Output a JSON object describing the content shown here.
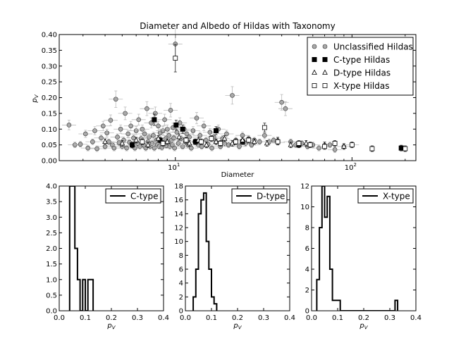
{
  "chart_data": [
    {
      "type": "scatter",
      "title": "Diameter and Albedo of Hildas with Taxonomy",
      "xlabel": "Diameter",
      "ylabel": "p_V",
      "xscale": "log",
      "xlim": [
        2.2,
        230
      ],
      "ylim": [
        0,
        0.4
      ],
      "yticks": [
        "0.00",
        "0.05",
        "0.10",
        "0.15",
        "0.20",
        "0.25",
        "0.30",
        "0.35",
        "0.40"
      ],
      "xticks": [
        {
          "value": 10,
          "base": "10",
          "exp": "1"
        },
        {
          "value": 100,
          "base": "10",
          "exp": "2"
        }
      ],
      "legend_position": "top-right",
      "series": [
        {
          "name": "Unclassified Hildas",
          "marker": "circle",
          "color": "#a9a9a9",
          "points": [
            [
              2.5,
              0.113
            ],
            [
              2.7,
              0.05
            ],
            [
              2.9,
              0.052
            ],
            [
              3.1,
              0.085
            ],
            [
              3.2,
              0.04
            ],
            [
              3.4,
              0.06
            ],
            [
              3.5,
              0.095
            ],
            [
              3.6,
              0.038
            ],
            [
              3.8,
              0.072
            ],
            [
              3.9,
              0.11
            ],
            [
              4.0,
              0.045
            ],
            [
              4.1,
              0.088
            ],
            [
              4.2,
              0.06
            ],
            [
              4.3,
              0.128
            ],
            [
              4.4,
              0.05
            ],
            [
              4.5,
              0.04
            ],
            [
              4.6,
              0.195
            ],
            [
              4.7,
              0.075
            ],
            [
              4.8,
              0.057
            ],
            [
              4.9,
              0.1
            ],
            [
              5.0,
              0.045
            ],
            [
              5.1,
              0.065
            ],
            [
              5.2,
              0.15
            ],
            [
              5.3,
              0.04
            ],
            [
              5.4,
              0.085
            ],
            [
              5.5,
              0.058
            ],
            [
              5.6,
              0.11
            ],
            [
              5.7,
              0.048
            ],
            [
              5.8,
              0.072
            ],
            [
              5.9,
              0.04
            ],
            [
              6.0,
              0.095
            ],
            [
              6.1,
              0.055
            ],
            [
              6.2,
              0.13
            ],
            [
              6.3,
              0.045
            ],
            [
              6.4,
              0.07
            ],
            [
              6.5,
              0.1
            ],
            [
              6.6,
              0.05
            ],
            [
              6.7,
              0.085
            ],
            [
              6.8,
              0.04
            ],
            [
              6.9,
              0.165
            ],
            [
              7.0,
              0.06
            ],
            [
              7.1,
              0.075
            ],
            [
              7.2,
              0.045
            ],
            [
              7.3,
              0.12
            ],
            [
              7.4,
              0.055
            ],
            [
              7.5,
              0.08
            ],
            [
              7.6,
              0.04
            ],
            [
              7.7,
              0.15
            ],
            [
              7.8,
              0.065
            ],
            [
              7.9,
              0.05
            ],
            [
              8.0,
              0.11
            ],
            [
              8.1,
              0.045
            ],
            [
              8.2,
              0.088
            ],
            [
              8.3,
              0.06
            ],
            [
              8.4,
              0.042
            ],
            [
              8.5,
              0.095
            ],
            [
              8.6,
              0.055
            ],
            [
              8.7,
              0.13
            ],
            [
              8.8,
              0.07
            ],
            [
              8.9,
              0.048
            ],
            [
              9.0,
              0.1
            ],
            [
              9.1,
              0.058
            ],
            [
              9.2,
              0.08
            ],
            [
              9.3,
              0.045
            ],
            [
              9.4,
              0.16
            ],
            [
              9.5,
              0.065
            ],
            [
              9.6,
              0.05
            ],
            [
              9.7,
              0.105
            ],
            [
              9.8,
              0.072
            ],
            [
              9.9,
              0.04
            ],
            [
              10.0,
              0.37
            ],
            [
              10.2,
              0.09
            ],
            [
              10.4,
              0.055
            ],
            [
              10.6,
              0.12
            ],
            [
              10.8,
              0.07
            ],
            [
              11.0,
              0.045
            ],
            [
              11.2,
              0.1
            ],
            [
              11.4,
              0.06
            ],
            [
              11.6,
              0.085
            ],
            [
              11.8,
              0.05
            ],
            [
              12.0,
              0.075
            ],
            [
              12.3,
              0.04
            ],
            [
              12.6,
              0.095
            ],
            [
              12.9,
              0.06
            ],
            [
              13.2,
              0.135
            ],
            [
              13.5,
              0.05
            ],
            [
              13.8,
              0.08
            ],
            [
              14.1,
              0.045
            ],
            [
              14.5,
              0.11
            ],
            [
              14.9,
              0.065
            ],
            [
              15.3,
              0.052
            ],
            [
              15.7,
              0.09
            ],
            [
              16.1,
              0.04
            ],
            [
              16.5,
              0.075
            ],
            [
              17.0,
              0.06
            ],
            [
              17.5,
              0.1
            ],
            [
              18.0,
              0.045
            ],
            [
              18.5,
              0.07
            ],
            [
              19.0,
              0.055
            ],
            [
              19.5,
              0.085
            ],
            [
              20.0,
              0.05
            ],
            [
              21.0,
              0.207
            ],
            [
              22.0,
              0.065
            ],
            [
              23.0,
              0.045
            ],
            [
              24.0,
              0.08
            ],
            [
              25.0,
              0.055
            ],
            [
              26.0,
              0.07
            ],
            [
              27.0,
              0.05
            ],
            [
              28.0,
              0.065
            ],
            [
              30.0,
              0.06
            ],
            [
              32.0,
              0.08
            ],
            [
              34.0,
              0.06
            ],
            [
              36.0,
              0.065
            ],
            [
              38.0,
              0.058
            ],
            [
              40.0,
              0.185
            ],
            [
              42.0,
              0.165
            ],
            [
              45.0,
              0.06
            ],
            [
              48.0,
              0.05
            ],
            [
              52.0,
              0.055
            ],
            [
              56.0,
              0.045
            ],
            [
              60.0,
              0.05
            ],
            [
              65.0,
              0.04
            ],
            [
              70.0,
              0.045
            ],
            [
              75.0,
              0.05
            ],
            [
              80.0,
              0.035
            ],
            [
              90.0,
              0.045
            ],
            [
              100.0,
              0.05
            ]
          ]
        },
        {
          "name": "C-type Hildas",
          "marker": "square-filled",
          "color": "#000000",
          "points": [
            [
              5.7,
              0.05
            ],
            [
              7.6,
              0.13
            ],
            [
              8.2,
              0.065
            ],
            [
              10.1,
              0.113
            ],
            [
              11.0,
              0.1
            ],
            [
              13.0,
              0.06
            ],
            [
              17.0,
              0.095
            ],
            [
              24.0,
              0.06
            ],
            [
              50.0,
              0.05
            ],
            [
              190.0,
              0.04
            ]
          ]
        },
        {
          "name": "D-type Hildas",
          "marker": "triangle-open",
          "color": "#ffffff",
          "points": [
            [
              4.0,
              0.06
            ],
            [
              5.0,
              0.055
            ],
            [
              6.0,
              0.065
            ],
            [
              7.0,
              0.05
            ],
            [
              8.0,
              0.07
            ],
            [
              9.0,
              0.06
            ],
            [
              10.5,
              0.075
            ],
            [
              12.0,
              0.055
            ],
            [
              13.5,
              0.065
            ],
            [
              15.0,
              0.05
            ],
            [
              17.0,
              0.06
            ],
            [
              19.0,
              0.07
            ],
            [
              21.0,
              0.055
            ],
            [
              24.0,
              0.065
            ],
            [
              28.0,
              0.06
            ],
            [
              33.0,
              0.055
            ],
            [
              38.0,
              0.065
            ],
            [
              45.0,
              0.05
            ],
            [
              55.0,
              0.055
            ],
            [
              70.0,
              0.05
            ],
            [
              90.0,
              0.045
            ]
          ]
        },
        {
          "name": "X-type Hildas",
          "marker": "square-open",
          "color": "#ffffff",
          "points": [
            [
              6.5,
              0.06
            ],
            [
              8.5,
              0.055
            ],
            [
              10.0,
              0.325
            ],
            [
              11.5,
              0.065
            ],
            [
              14.0,
              0.06
            ],
            [
              16.0,
              0.07
            ],
            [
              18.0,
              0.055
            ],
            [
              22.0,
              0.06
            ],
            [
              26.0,
              0.065
            ],
            [
              32.0,
              0.105
            ],
            [
              38.0,
              0.06
            ],
            [
              50.0,
              0.055
            ],
            [
              58.0,
              0.05
            ],
            [
              70.0,
              0.045
            ],
            [
              80.0,
              0.055
            ],
            [
              100.0,
              0.05
            ],
            [
              130.0,
              0.038
            ],
            [
              200.0,
              0.038
            ]
          ]
        }
      ]
    },
    {
      "type": "histogram",
      "legend": "C-type",
      "xlabel": "p_V",
      "xlim": [
        0,
        0.4
      ],
      "ylim": [
        0,
        4
      ],
      "xticks": [
        "0.0",
        "0.1",
        "0.2",
        "0.3",
        "0.4"
      ],
      "yticks": [
        "0.0",
        "0.5",
        "1.0",
        "1.5",
        "2.0",
        "2.5",
        "3.0",
        "3.5",
        "4.0"
      ],
      "bin_edges": [
        0.04,
        0.05,
        0.06,
        0.07,
        0.08,
        0.09,
        0.1,
        0.11,
        0.12,
        0.13
      ],
      "counts": [
        4,
        4,
        2,
        1,
        0,
        1,
        0,
        1,
        1
      ]
    },
    {
      "type": "histogram",
      "legend": "D-type",
      "xlabel": "p_V",
      "xlim": [
        0,
        0.4
      ],
      "ylim": [
        0,
        18
      ],
      "xticks": [
        "0.0",
        "0.1",
        "0.2",
        "0.3",
        "0.4"
      ],
      "yticks": [
        "0",
        "2",
        "4",
        "6",
        "8",
        "10",
        "12",
        "14",
        "16",
        "18"
      ],
      "bin_edges": [
        0.03,
        0.04,
        0.05,
        0.06,
        0.07,
        0.08,
        0.09,
        0.1,
        0.11,
        0.12
      ],
      "counts": [
        2,
        6,
        14,
        16,
        17,
        10,
        6,
        2,
        1
      ]
    },
    {
      "type": "histogram",
      "legend": "X-type",
      "xlabel": "p_V",
      "xlim": [
        0,
        0.4
      ],
      "ylim": [
        0,
        12
      ],
      "xticks": [
        "0.0",
        "0.1",
        "0.2",
        "0.3",
        "0.4"
      ],
      "yticks": [
        "0",
        "2",
        "4",
        "6",
        "8",
        "10",
        "12"
      ],
      "bin_edges": [
        0.02,
        0.03,
        0.04,
        0.05,
        0.06,
        0.07,
        0.08,
        0.09,
        0.1,
        0.11,
        0.12,
        0.13,
        0.14,
        0.15,
        0.16,
        0.17,
        0.18,
        0.19,
        0.2,
        0.21,
        0.22,
        0.23,
        0.24,
        0.25,
        0.26,
        0.27,
        0.28,
        0.29,
        0.3,
        0.31,
        0.32,
        0.33
      ],
      "counts": [
        3,
        8,
        12,
        9,
        11,
        4,
        1,
        1,
        1,
        0,
        0,
        0,
        0,
        0,
        0,
        0,
        0,
        0,
        0,
        0,
        0,
        0,
        0,
        0,
        0,
        0,
        0,
        0,
        0,
        0,
        1
      ]
    }
  ]
}
